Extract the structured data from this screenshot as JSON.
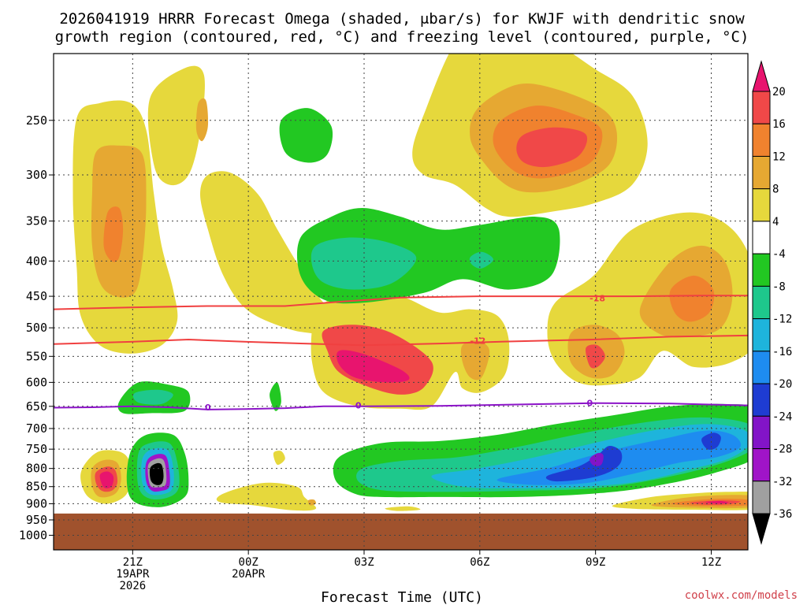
{
  "chart_data": {
    "type": "heatmap",
    "title_line1": "2026041919 HRRR Forecast Omega (shaded, μbar/s) for KWJF with dendritic snow",
    "title_line2": "growth region (contoured, red, °C) and freezing level (contoured, purple, °C)",
    "xlabel": "Forecast Time (UTC)",
    "credit": "coolwx.com/models",
    "x_ticks": [
      {
        "hour": -1.95,
        "lines": [
          "21Z",
          "19APR",
          "2026"
        ]
      },
      {
        "hour": 1.05,
        "lines": [
          "00Z",
          "20APR"
        ]
      },
      {
        "hour": 4.05,
        "lines": [
          "03Z"
        ]
      },
      {
        "hour": 7.05,
        "lines": [
          "06Z"
        ]
      },
      {
        "hour": 10.05,
        "lines": [
          "09Z"
        ]
      },
      {
        "hour": 13.05,
        "lines": [
          "12Z"
        ]
      }
    ],
    "xlim": [
      -4,
      14
    ],
    "y_ticks": [
      250,
      300,
      350,
      400,
      450,
      500,
      550,
      600,
      650,
      700,
      750,
      800,
      850,
      900,
      950,
      1000
    ],
    "ylim_hpa": [
      200,
      1050
    ],
    "ground_level_hpa": 930,
    "grid": true,
    "colorbar": {
      "labels": [
        "20",
        "16",
        "12",
        "8",
        "4",
        "-4",
        "-8",
        "-12",
        "-16",
        "-20",
        "-24",
        "-28",
        "-32",
        "-36"
      ],
      "colors": [
        "#e8146e",
        "#f04848",
        "#f0822e",
        "#e6a832",
        "#e6d83c",
        "#ffffff",
        "#22c822",
        "#1ec88c",
        "#1eb4dc",
        "#1e8cf0",
        "#1e3cd2",
        "#8214c8",
        "#a014c8",
        "#a0a0a0",
        "#000000"
      ],
      "position": "right"
    },
    "colors": {
      "ground": "#a0522d",
      "dgz_contour": "#f04040",
      "freezing_contour": "#8c14c8"
    },
    "contour_labels": [
      {
        "text": "-18",
        "color": "#f04040",
        "hour": 10.1,
        "hpa": 453
      },
      {
        "text": "-12",
        "color": "#f04040",
        "hour": 7.0,
        "hpa": 522
      },
      {
        "text": "0",
        "color": "#8c14c8",
        "hour": 0.0,
        "hpa": 652
      },
      {
        "text": "0",
        "color": "#8c14c8",
        "hour": 3.9,
        "hpa": 648
      },
      {
        "text": "0",
        "color": "#8c14c8",
        "hour": 9.9,
        "hpa": 643
      }
    ]
  }
}
